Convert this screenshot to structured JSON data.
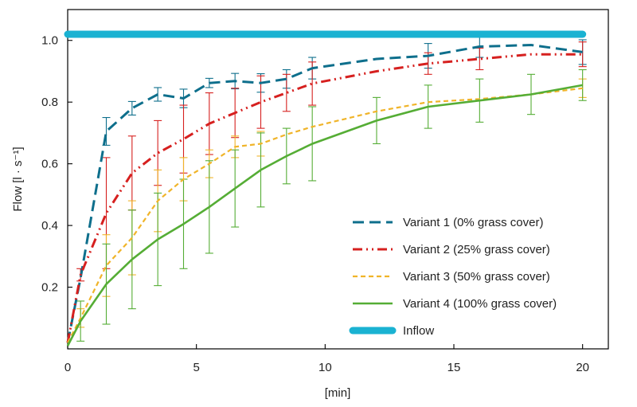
{
  "chart_data": {
    "type": "line",
    "title": "",
    "xlabel": "[min]",
    "ylabel": "Flow [l · s⁻¹]",
    "xlim": [
      0,
      21
    ],
    "ylim": [
      0,
      1.1
    ],
    "xticks": [
      0,
      5,
      10,
      15,
      20
    ],
    "xtick_labels": [
      "0",
      "5",
      "10",
      "15",
      "20"
    ],
    "yticks": [
      0.2,
      0.4,
      0.6,
      0.8,
      1.0
    ],
    "ytick_labels": [
      "0.2",
      "0.4",
      "0.6",
      "0.8",
      "1.0"
    ],
    "grid": false,
    "legend_position": "bottom-right",
    "x": [
      0,
      0.5,
      1.5,
      2.5,
      3.5,
      4.5,
      5.5,
      6.5,
      7.5,
      8.5,
      9.5,
      12,
      14,
      16,
      18,
      20
    ],
    "series": [
      {
        "name": "Variant 1 (0% grass cover)",
        "color": "#0e6f8c",
        "dash": "long-dash",
        "values": [
          0.02,
          0.23,
          0.705,
          0.78,
          0.825,
          0.812,
          0.862,
          0.868,
          0.862,
          0.875,
          0.91,
          0.94,
          0.95,
          0.98,
          0.985,
          0.962
        ],
        "error": [
          0.0,
          0.0,
          0.045,
          0.022,
          0.022,
          0.03,
          0.015,
          0.025,
          0.03,
          0.03,
          0.035,
          0.0,
          0.04,
          0.035,
          0.0,
          0.04
        ]
      },
      {
        "name": "Variant 2 (25% grass cover)",
        "color": "#d6201f",
        "dash": "dash-dot-dot",
        "values": [
          0.02,
          0.24,
          0.44,
          0.57,
          0.635,
          0.68,
          0.73,
          0.765,
          0.8,
          0.83,
          0.86,
          0.9,
          0.925,
          0.94,
          0.955,
          0.955
        ],
        "error": [
          0.0,
          0.02,
          0.18,
          0.12,
          0.105,
          0.11,
          0.1,
          0.08,
          0.085,
          0.06,
          0.07,
          0.0,
          0.035,
          0.035,
          0.0,
          0.04
        ]
      },
      {
        "name": "Variant 3 (50% grass cover)",
        "color": "#f0b429",
        "dash": "short-dash",
        "values": [
          0.02,
          0.1,
          0.27,
          0.36,
          0.48,
          0.55,
          0.6,
          0.655,
          0.665,
          0.695,
          0.72,
          0.77,
          0.8,
          0.81,
          0.825,
          0.845
        ],
        "error": [
          0.0,
          0.03,
          0.1,
          0.12,
          0.1,
          0.07,
          0.045,
          0.035,
          0.04,
          0.0,
          0.0,
          0.0,
          0.0,
          0.0,
          0.0,
          0.03
        ]
      },
      {
        "name": "Variant 4 (100% grass cover)",
        "color": "#55ad35",
        "dash": "solid",
        "values": [
          0.01,
          0.09,
          0.21,
          0.29,
          0.355,
          0.405,
          0.46,
          0.52,
          0.58,
          0.625,
          0.665,
          0.74,
          0.785,
          0.805,
          0.825,
          0.855
        ],
        "error": [
          0.0,
          0.065,
          0.13,
          0.16,
          0.15,
          0.145,
          0.15,
          0.125,
          0.12,
          0.09,
          0.12,
          0.075,
          0.07,
          0.07,
          0.065,
          0.05
        ]
      },
      {
        "name": "Inflow",
        "color": "#1ab2d2",
        "dash": "solid-thick",
        "x": [
          0,
          20
        ],
        "values": [
          1.02,
          1.02
        ],
        "error": [
          0,
          0
        ]
      }
    ]
  }
}
